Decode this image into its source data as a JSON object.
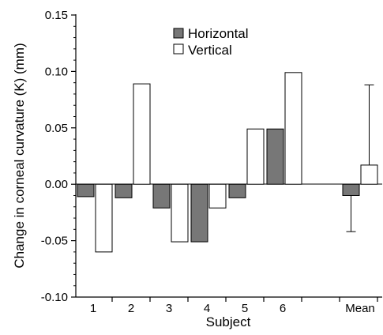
{
  "chart_data": {
    "type": "bar",
    "title": "",
    "xlabel": "Subject",
    "ylabel": "Change in corneal curvature (K) (mm)",
    "categories": [
      "1",
      "2",
      "3",
      "4",
      "5",
      "6",
      "",
      "Mean"
    ],
    "series": [
      {
        "name": "Horizontal",
        "color": "#777777",
        "values": [
          -0.011,
          -0.012,
          -0.021,
          -0.051,
          -0.012,
          0.049,
          null,
          -0.01
        ]
      },
      {
        "name": "Vertical",
        "color": "#ffffff",
        "values": [
          -0.06,
          0.089,
          -0.051,
          -0.021,
          0.049,
          0.099,
          null,
          0.017
        ]
      }
    ],
    "error_bars": [
      {
        "category": "Mean",
        "series": "Horizontal",
        "lower": -0.042
      },
      {
        "category": "Mean",
        "series": "Vertical",
        "upper": 0.088
      }
    ],
    "ylim": [
      -0.1,
      0.15
    ],
    "yticks": [
      "0.15",
      "0.10",
      "0.05",
      "0.00",
      "-0.05",
      "-0.10"
    ],
    "ytick_values": [
      0.15,
      0.1,
      0.05,
      0.0,
      -0.05,
      -0.1
    ],
    "grid": false,
    "legend_position": "top-center"
  }
}
